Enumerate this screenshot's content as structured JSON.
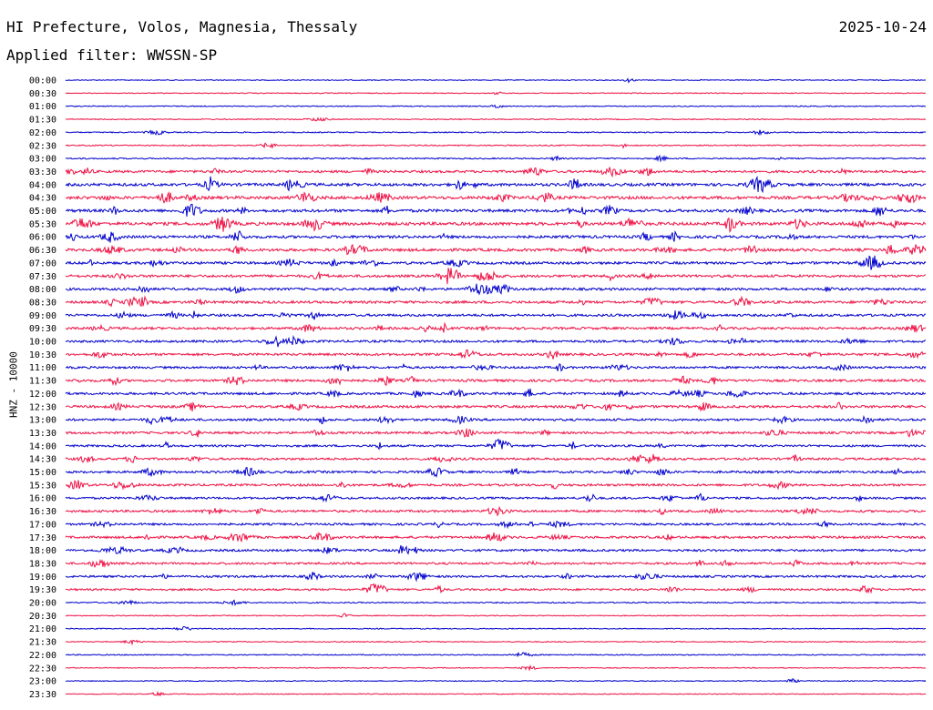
{
  "header": {
    "station": "HI Prefecture, Volos, Magnesia, Thessaly",
    "date": "2025-10-24",
    "filter": "Applied filter: WWSSN-SP"
  },
  "colors": {
    "odd_rows": "#0000cc",
    "even_rows": "#ee1144"
  },
  "chart_data": {
    "type": "line",
    "title": "HI Prefecture, Volos, Magnesia, Thessaly",
    "ylabel": "HNZ - 10000",
    "xlabel": "",
    "grid": false,
    "legend": "none",
    "row_labels": [
      "00:00",
      "00:30",
      "01:00",
      "01:30",
      "02:00",
      "02:30",
      "03:00",
      "03:30",
      "04:00",
      "04:30",
      "05:00",
      "05:30",
      "06:00",
      "06:30",
      "07:00",
      "07:30",
      "08:00",
      "08:30",
      "09:00",
      "09:30",
      "10:00",
      "10:30",
      "11:00",
      "11:30",
      "12:00",
      "12:30",
      "13:00",
      "13:30",
      "14:00",
      "14:30",
      "15:00",
      "15:30",
      "16:00",
      "16:30",
      "17:00",
      "17:30",
      "18:00",
      "18:30",
      "19:00",
      "19:30",
      "20:00",
      "20:30",
      "21:00",
      "21:30",
      "22:00",
      "22:30",
      "23:00",
      "23:30"
    ],
    "activity": [
      0.04,
      0.05,
      0.06,
      0.08,
      0.12,
      0.14,
      0.18,
      0.55,
      0.7,
      0.75,
      0.7,
      0.8,
      0.65,
      0.7,
      0.6,
      0.6,
      0.55,
      0.6,
      0.55,
      0.55,
      0.5,
      0.55,
      0.5,
      0.55,
      0.55,
      0.6,
      0.5,
      0.5,
      0.45,
      0.5,
      0.5,
      0.5,
      0.45,
      0.5,
      0.45,
      0.55,
      0.5,
      0.45,
      0.45,
      0.4,
      0.15,
      0.06,
      0.06,
      0.05,
      0.1,
      0.04,
      0.04,
      0.05
    ]
  }
}
